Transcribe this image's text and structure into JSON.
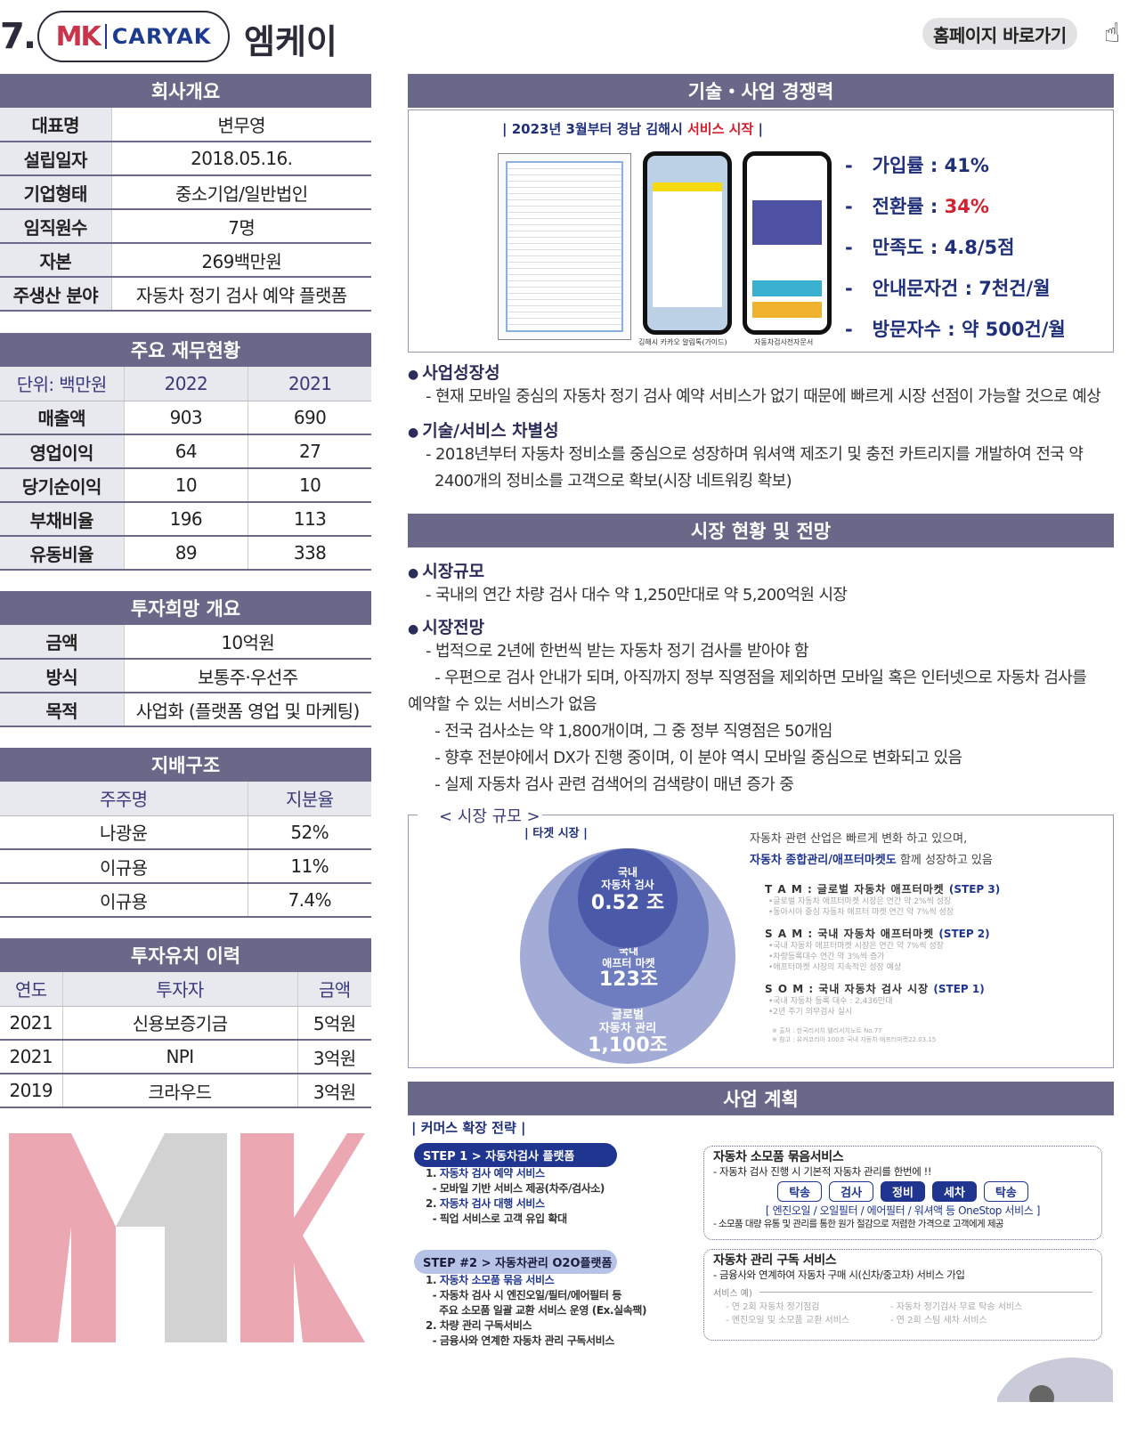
{
  "header": {
    "number": "7.",
    "logo_mk": "MK",
    "logo_caryak": "CARYAK",
    "company_name": "엠케이",
    "homepage_button": "홈페이지 바로가기"
  },
  "overview": {
    "title": "회사개요",
    "rows": [
      [
        "대표명",
        "변무영"
      ],
      [
        "설립일자",
        "2018.05.16."
      ],
      [
        "기업형태",
        "중소기업/일반법인"
      ],
      [
        "임직원수",
        "7명"
      ],
      [
        "자본",
        "269백만원"
      ],
      [
        "주생산 분야",
        "자동차 정기 검사 예약 플랫폼"
      ]
    ]
  },
  "financial": {
    "title": "주요 재무현황",
    "header": [
      "단위: 백만원",
      "2022",
      "2021"
    ],
    "rows": [
      [
        "매출액",
        "903",
        "690"
      ],
      [
        "영업이익",
        "64",
        "27"
      ],
      [
        "당기순이익",
        "10",
        "10"
      ],
      [
        "부채비율",
        "196",
        "113"
      ],
      [
        "유동비율",
        "89",
        "338"
      ]
    ]
  },
  "investment": {
    "title": "투자희망 개요",
    "rows": [
      [
        "금액",
        "10억원"
      ],
      [
        "방식",
        "보통주·우선주"
      ],
      [
        "목적",
        "사업화 (플랫폼 영업 및 마케팅)"
      ]
    ]
  },
  "governance": {
    "title": "지배구조",
    "header": [
      "주주명",
      "지분율"
    ],
    "rows": [
      [
        "나광윤",
        "52%"
      ],
      [
        "이규용",
        "11%"
      ],
      [
        "이규용",
        "7.4%"
      ]
    ]
  },
  "history": {
    "title": "투자유치 이력",
    "header": [
      "연도",
      "투자자",
      "금액"
    ],
    "rows": [
      [
        "2021",
        "신용보증기금",
        "5억원"
      ],
      [
        "2021",
        "NPI",
        "3억원"
      ],
      [
        "2019",
        "크라우드",
        "3억원"
      ]
    ]
  },
  "tech": {
    "title": "기술・사업 경쟁력",
    "banner_prefix": "| 2023년 3월부터 경남 김해시 ",
    "banner_highlight": "서비스 시작",
    "banner_suffix": " |",
    "caption1": "김해시 카카오 알림톡(가이드)",
    "caption2": "자동차검사전자문서",
    "stats": [
      {
        "label": "가입률 : ",
        "value": "41%"
      },
      {
        "label": "전환률 : ",
        "value": "34%"
      },
      {
        "label": "만족도 : ",
        "value": "4.8/5점"
      },
      {
        "label": "안내문자건 : ",
        "value": "7천건/월"
      },
      {
        "label": "방문자수 : ",
        "value": "약 500건/월"
      }
    ],
    "growth_title": "사업성장성",
    "growth_text": "- 현재 모바일 중심의 자동차 정기 검사 예약 서비스가 없기 때문에 빠르게 시장 선점이 가능할 것으로 예상",
    "diff_title": "기술/서비스 차별성",
    "diff_text1": "- 2018년부터 자동차 정비소를 중심으로 성장하며 워셔액 제조기 및 충전 카트리지를 개발하여 전국 약",
    "diff_text2": "2400개의 정비소를 고객으로 확보(시장 네트워킹 확보)"
  },
  "market": {
    "title": "시장 현황 및 전망",
    "size_title": "시장규모",
    "size_text": "- 국내의 연간 차량 검사 대수 약 1,250만대로 약 5,200억원 시장",
    "outlook_title": "시장전망",
    "outlook_lines": [
      "- 법적으로 2년에 한번씩 받는 자동차 정기 검사를 받아야 함",
      "  - 우편으로 검사 안내가 되며, 아직까지 정부 직영점을 제외하면 모바일 혹은 인터넷으로 자동차 검사를",
      "예약할 수 있는 서비스가 없음",
      "  - 전국 검사소는 약 1,800개이며, 그 중 정부 직영점은 50개임",
      "  - 향후 전분야에서 DX가 진행 중이며, 이 분야 역시 모바일 중심으로 변화되고 있음",
      "  - 실제 자동차 검사 관련 검색어의 검색량이 매년 증가 중"
    ],
    "box_label": "< 시장 규모 >",
    "target": "| 타겟 시장 |",
    "circles": [
      {
        "label1": "국내",
        "label2": "자동차 검사",
        "value": "0.52 조"
      },
      {
        "label1": "국내",
        "label2": "애프터 마켓",
        "value": "123조"
      },
      {
        "label1": "글로벌",
        "label2": "자동차 관리",
        "value": "1,100조"
      }
    ],
    "intro1": "자동차 관련 산업은 빠르게 변화 하고 있으며,",
    "intro2_hl": "자동차 종합관리/애프터마켓도",
    "intro2": " 함께 성장하고 있음",
    "tiers": [
      {
        "name": "T A M : 글로벌 자동차 애프터마켓 ",
        "step": "(STEP 3)",
        "notes": [
          "•글로벌 자동차 애프터마켓 시장은 연간 약 2%씩 성장",
          "•동아시아 중심 자동차 애프터 마켓 연간 약 7%씩 성장"
        ]
      },
      {
        "name": "S A M : 국내 자동차 애프터마켓 ",
        "step": "(STEP 2)",
        "notes": [
          "•국내 자동차 애프터마켓 시장은 연간 약 7%씩 성장",
          "•차량등록대수 연간 약 3%씩 증가",
          "•애프터마켓 시장의 지속적인 성장 예상"
        ]
      },
      {
        "name": "S O M : 국내 자동차 검사 시장 ",
        "step": "(STEP 1)",
        "notes": [
          "•국내 자동차 등록 대수 : 2,436만대",
          "•2년 주기 의무검사 실시"
        ]
      }
    ],
    "sources": [
      "※ 출처 : 한국리서치 텔리서치노트 No.77",
      "※ 참고 : 유커코리아 100조 국내 자동차 애프터마켓22.03.15"
    ]
  },
  "plan": {
    "title": "사업 계획",
    "strategy": "| 커머스 확장 전략 |",
    "step1": "STEP 1 > 자동차검사 플랫폼",
    "step1_items": [
      {
        "t": "1. ",
        "h": "자동차 검사 예약 서비스"
      },
      {
        "t": "  - 모바일 기반 서비스 제공(차주/검사소)"
      },
      {
        "t": "2. ",
        "h": "자동차 검사 대행 서비스"
      },
      {
        "t": "  - 픽업 서비스로 고객 유입 확대"
      }
    ],
    "step2": "STEP #2 > 자동차관리 O2O플랫폼",
    "step2_items": [
      {
        "t": "1. ",
        "h": "자동차 소모품 묶음 서비스"
      },
      {
        "t": "  - 자동차 검사 시 엔진오일/필터/에어필터 등"
      },
      {
        "t": "    주요 소모품 일괄 교환 서비스 운영 (Ex.실속팩)"
      },
      {
        "t": "2. 차량 관리 구독서비스"
      },
      {
        "t": "  - 금융사와 연계한 자동차 관리 구독서비스"
      }
    ],
    "bundle_title": "자동차 소모품 묶음서비스",
    "bundle_sub": "- 자동차 검사 진행 시 기본적 자동차 관리를 한번에 !!",
    "chips": [
      "탁송",
      "검사",
      "정비",
      "세차",
      "탁송"
    ],
    "bundle_onestop": "[ 엔진오일 / 오일필터 / 에어필터 / 워셔액 등 OneStop 서비스 ]",
    "bundle_note": "- 소모품 대량 유통 및 관리를 통한 원가 절감으로 저렴한 가격으로 고객에게 제공",
    "sub_title": "자동차 관리 구독 서비스",
    "sub_sub": "- 금융사와 연계하여 자동차 구매 시(신차/중고차) 서비스 가입",
    "sub_ex": "서비스 예)",
    "sub_items": [
      "- 연 2회 자동차 정기점검",
      "- 자동차 정기검사 무료 탁송 서비스",
      "- 엔진오일 및 소모품 교환 서비스",
      "- 연 2회 스팀 세차 서비스"
    ]
  },
  "colors": {
    "header_bar": "#6a6889",
    "accent_blue": "#1f3590",
    "accent_red": "#d6202e",
    "logo_red": "#c9344a"
  }
}
